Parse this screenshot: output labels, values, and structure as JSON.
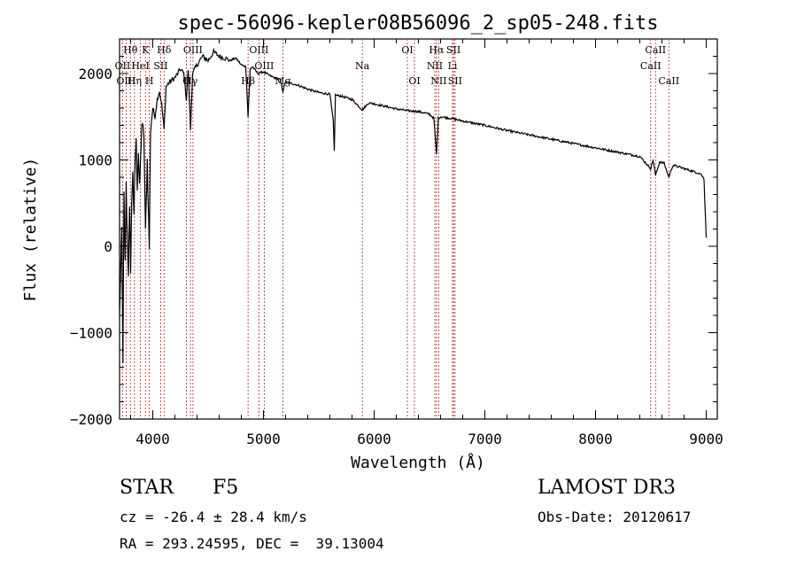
{
  "chart_data": {
    "type": "line",
    "title": "spec-56096-kepler08B56096_2_sp05-248.fits",
    "xlabel": "Wavelength (Å)",
    "ylabel": "Flux (relative)",
    "xlim": [
      3700,
      9100
    ],
    "ylim": [
      -2000,
      2400
    ],
    "xticks": [
      4000,
      5000,
      6000,
      7000,
      8000,
      9000
    ],
    "yticks": [
      -2000,
      -1000,
      0,
      1000,
      2000
    ],
    "spectral_lines": [
      {
        "label": "Hθ",
        "wavelength": 3798,
        "row": 0
      },
      {
        "label": "OII",
        "wavelength": 3727,
        "row": 1
      },
      {
        "label": "OIII",
        "wavelength": 3759,
        "row": 2
      },
      {
        "label": "K",
        "wavelength": 3934,
        "row": 0
      },
      {
        "label": "HeI",
        "wavelength": 3889,
        "row": 1
      },
      {
        "label": "Hη",
        "wavelength": 3835,
        "row": 2
      },
      {
        "label": "Hδ",
        "wavelength": 4102,
        "row": 0
      },
      {
        "label": "SII",
        "wavelength": 4072,
        "row": 1
      },
      {
        "label": "H",
        "wavelength": 3969,
        "row": 2
      },
      {
        "label": "OIII",
        "wavelength": 4363,
        "row": 0
      },
      {
        "label": "G",
        "wavelength": 4304,
        "row": 2
      },
      {
        "label": "Hγ",
        "wavelength": 4341,
        "row": 2
      },
      {
        "label": "OIII",
        "wavelength": 4959,
        "row": 0
      },
      {
        "label": "OIII",
        "wavelength": 5007,
        "row": 1
      },
      {
        "label": "Hβ",
        "wavelength": 4861,
        "row": 2
      },
      {
        "label": "Mg",
        "wavelength": 5175,
        "row": 2
      },
      {
        "label": "Na",
        "wavelength": 5893,
        "row": 1
      },
      {
        "label": "OI",
        "wavelength": 6300,
        "row": 0
      },
      {
        "label": "OI",
        "wavelength": 6364,
        "row": 2
      },
      {
        "label": "Hα",
        "wavelength": 6563,
        "row": 0
      },
      {
        "label": "NII",
        "wavelength": 6548,
        "row": 1
      },
      {
        "label": "NII",
        "wavelength": 6583,
        "row": 2
      },
      {
        "label": "SII",
        "wavelength": 6717,
        "row": 0
      },
      {
        "label": "Li",
        "wavelength": 6708,
        "row": 1
      },
      {
        "label": "SII",
        "wavelength": 6731,
        "row": 2
      },
      {
        "label": "CaII",
        "wavelength": 8542,
        "row": 0
      },
      {
        "label": "CaII",
        "wavelength": 8498,
        "row": 1
      },
      {
        "label": "CaII",
        "wavelength": 8662,
        "row": 2
      }
    ],
    "spectrum": [
      [
        3700,
        -800
      ],
      [
        3710,
        -300
      ],
      [
        3720,
        200
      ],
      [
        3730,
        -1300
      ],
      [
        3740,
        600
      ],
      [
        3750,
        -200
      ],
      [
        3760,
        700
      ],
      [
        3770,
        100
      ],
      [
        3780,
        -300
      ],
      [
        3790,
        400
      ],
      [
        3800,
        -250
      ],
      [
        3810,
        500
      ],
      [
        3820,
        900
      ],
      [
        3830,
        300
      ],
      [
        3840,
        1000
      ],
      [
        3850,
        1200
      ],
      [
        3860,
        700
      ],
      [
        3870,
        1100
      ],
      [
        3880,
        650
      ],
      [
        3890,
        1000
      ],
      [
        3900,
        1400
      ],
      [
        3920,
        1300
      ],
      [
        3934,
        150
      ],
      [
        3950,
        1000
      ],
      [
        3969,
        -20
      ],
      [
        3980,
        1350
      ],
      [
        4000,
        1600
      ],
      [
        4020,
        1500
      ],
      [
        4040,
        1700
      ],
      [
        4060,
        1800
      ],
      [
        4080,
        1650
      ],
      [
        4102,
        1350
      ],
      [
        4120,
        1850
      ],
      [
        4150,
        1900
      ],
      [
        4200,
        1950
      ],
      [
        4250,
        2050
      ],
      [
        4280,
        2000
      ],
      [
        4304,
        1700
      ],
      [
        4320,
        2050
      ],
      [
        4341,
        1350
      ],
      [
        4360,
        2000
      ],
      [
        4400,
        2100
      ],
      [
        4450,
        2200
      ],
      [
        4500,
        2150
      ],
      [
        4550,
        2250
      ],
      [
        4600,
        2200
      ],
      [
        4650,
        2180
      ],
      [
        4700,
        2150
      ],
      [
        4750,
        2180
      ],
      [
        4800,
        2100
      ],
      [
        4840,
        2080
      ],
      [
        4861,
        1500
      ],
      [
        4880,
        2050
      ],
      [
        4900,
        2080
      ],
      [
        4950,
        2000
      ],
      [
        5000,
        2020
      ],
      [
        5050,
        1980
      ],
      [
        5100,
        1950
      ],
      [
        5150,
        1930
      ],
      [
        5175,
        1800
      ],
      [
        5200,
        1900
      ],
      [
        5300,
        1870
      ],
      [
        5400,
        1820
      ],
      [
        5500,
        1780
      ],
      [
        5600,
        1760
      ],
      [
        5630,
        1450
      ],
      [
        5640,
        1100
      ],
      [
        5650,
        1750
      ],
      [
        5700,
        1740
      ],
      [
        5800,
        1700
      ],
      [
        5893,
        1580
      ],
      [
        5950,
        1660
      ],
      [
        6000,
        1650
      ],
      [
        6100,
        1620
      ],
      [
        6200,
        1590
      ],
      [
        6300,
        1570
      ],
      [
        6400,
        1560
      ],
      [
        6500,
        1530
      ],
      [
        6540,
        1480
      ],
      [
        6563,
        1060
      ],
      [
        6580,
        1480
      ],
      [
        6600,
        1500
      ],
      [
        6700,
        1480
      ],
      [
        6800,
        1450
      ],
      [
        7000,
        1400
      ],
      [
        7200,
        1340
      ],
      [
        7400,
        1290
      ],
      [
        7600,
        1240
      ],
      [
        7800,
        1190
      ],
      [
        8000,
        1140
      ],
      [
        8200,
        1090
      ],
      [
        8400,
        1040
      ],
      [
        8498,
        900
      ],
      [
        8520,
        1000
      ],
      [
        8542,
        820
      ],
      [
        8580,
        980
      ],
      [
        8620,
        960
      ],
      [
        8662,
        800
      ],
      [
        8700,
        940
      ],
      [
        8800,
        900
      ],
      [
        8900,
        860
      ],
      [
        8950,
        840
      ],
      [
        8980,
        780
      ],
      [
        9000,
        100
      ]
    ]
  },
  "info": {
    "object_class": "STAR",
    "subclass": "F5",
    "survey": "LAMOST DR3",
    "redshift": "cz = -26.4 ± 28.4 km/s",
    "obs_date": "Obs-Date: 20120617",
    "coords": "RA = 293.24595, DEC =  39.13004"
  },
  "colors": {
    "spectrum": "#000000",
    "line_markers": "#b22222",
    "axes": "#000000"
  }
}
